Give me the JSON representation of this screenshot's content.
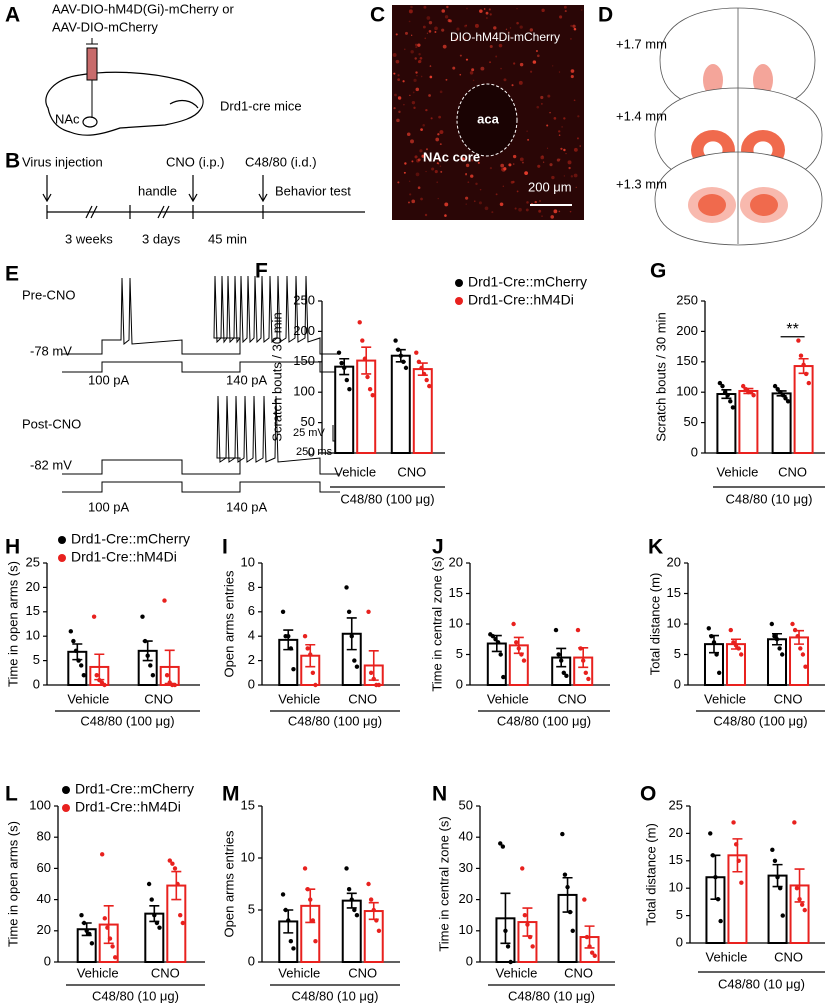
{
  "diagram": {
    "A": {
      "label": "A",
      "vector1": "AAV-DIO-hM4D(Gi)-mCherry or",
      "vector2": "AAV-DIO-mCherry",
      "region": "NAc",
      "mice": "Drd1-cre mice"
    },
    "B": {
      "label": "B",
      "step1": "Virus injection",
      "step2": "CNO (i.p.)",
      "step3": "C48/80 (i.d.)",
      "handle": "handle",
      "test": "Behavior test",
      "t1": "3 weeks",
      "t2": "3 days",
      "t3": "45 min"
    },
    "C": {
      "label": "C",
      "title": "DIO-hM4Di-mCherry",
      "aca": "aca",
      "core": "NAc core",
      "scale": "200 μm"
    },
    "D": {
      "label": "D",
      "s1": "+1.7 mm",
      "s2": "+1.4 mm",
      "s3": "+1.3 mm"
    },
    "E": {
      "label": "E",
      "pre": "Pre-CNO",
      "pre_v": "-78 mV",
      "pre_i1": "100 pA",
      "pre_i2": "140 pA",
      "post": "Post-CNO",
      "post_v": "-82 mV",
      "post_i1": "100 pA",
      "post_i2": "140 pA",
      "scale_v": "25 mV",
      "scale_t": "250 ms"
    }
  },
  "chart_data": [
    {
      "type": "bar",
      "panel": "F",
      "ylabel": "Scratch bouts / 30 min",
      "xlabel": "C48/80 (100 μg)",
      "categories": [
        "Vehicle",
        "CNO"
      ],
      "ylim": [
        0,
        250
      ],
      "yticks": [
        0,
        50,
        100,
        150,
        200,
        250
      ],
      "legend": "top",
      "series": [
        {
          "name": "Drd1-Cre::mCherry",
          "color": "#000000",
          "values": [
            142,
            160
          ],
          "errors": [
            13,
            10
          ],
          "points": [
            [
              165,
              148,
              140,
              120,
              105
            ],
            [
              185,
              170,
              160,
              150,
              140
            ]
          ]
        },
        {
          "name": "Drd1-Cre::hM4Di",
          "color": "#e8211e",
          "values": [
            152,
            138
          ],
          "errors": [
            22,
            10
          ],
          "points": [
            [
              215,
              185,
              155,
              125,
              105,
              95
            ],
            [
              165,
              150,
              140,
              130,
              120,
              110
            ]
          ]
        }
      ]
    },
    {
      "type": "bar",
      "panel": "G",
      "ylabel": "Scratch bouts / 30 min",
      "xlabel": "C48/80 (10 μg)",
      "categories": [
        "Vehicle",
        "CNO"
      ],
      "ylim": [
        0,
        250
      ],
      "yticks": [
        0,
        50,
        100,
        150,
        200,
        250
      ],
      "annotation": "**",
      "series": [
        {
          "color": "#000000",
          "values": [
            97,
            98
          ],
          "errors": [
            7,
            4
          ],
          "points": [
            [
              115,
              110,
              100,
              95,
              85,
              75
            ],
            [
              110,
              105,
              100,
              95,
              90,
              85
            ]
          ]
        },
        {
          "color": "#e8211e",
          "values": [
            102,
            143
          ],
          "errors": [
            4,
            12
          ],
          "points": [
            [
              110,
              105,
              100,
              100,
              95
            ],
            [
              185,
              160,
              145,
              130,
              115
            ]
          ]
        }
      ]
    },
    {
      "type": "bar",
      "panel": "H",
      "ylabel": "Time in open arms (s)",
      "xlabel": "C48/80 (100 μg)",
      "categories": [
        "Vehicle",
        "CNO"
      ],
      "ylim": [
        0,
        25
      ],
      "yticks": [
        0,
        5,
        10,
        15,
        20,
        25
      ],
      "legend": "top",
      "series": [
        {
          "name": "Drd1-Cre::mCherry",
          "color": "#000000",
          "values": [
            6.8,
            7.0
          ],
          "errors": [
            1.6,
            2.0
          ],
          "points": [
            [
              11,
              9,
              7,
              5,
              4,
              2
            ],
            [
              14,
              9,
              6,
              4,
              2
            ]
          ]
        },
        {
          "name": "Drd1-Cre::hM4Di",
          "color": "#e8211e",
          "values": [
            3.7,
            3.7
          ],
          "errors": [
            2.6,
            3.4
          ],
          "points": [
            [
              14,
              2,
              1,
              0.5,
              0
            ],
            [
              17.3,
              2,
              0.5,
              0,
              0
            ]
          ]
        }
      ]
    },
    {
      "type": "bar",
      "panel": "I",
      "ylabel": "Open arms entries",
      "xlabel": "C48/80 (100 μg)",
      "categories": [
        "Vehicle",
        "CNO"
      ],
      "ylim": [
        0,
        10
      ],
      "yticks": [
        0,
        2,
        4,
        6,
        8,
        10
      ],
      "series": [
        {
          "color": "#000000",
          "values": [
            3.7,
            4.2
          ],
          "errors": [
            0.8,
            1.3
          ],
          "points": [
            [
              6,
              4,
              4,
              3,
              1.3
            ],
            [
              8,
              6,
              4,
              2,
              1.5
            ]
          ]
        },
        {
          "color": "#e8211e",
          "values": [
            2.4,
            1.6
          ],
          "errors": [
            0.9,
            1.2
          ],
          "points": [
            [
              4,
              3,
              2.5,
              1,
              0
            ],
            [
              6,
              1,
              0.5,
              0,
              0
            ]
          ]
        }
      ]
    },
    {
      "type": "bar",
      "panel": "J",
      "ylabel": "Time in central zone (s)",
      "xlabel": "C48/80 (100 μg)",
      "categories": [
        "Vehicle",
        "CNO"
      ],
      "ylim": [
        0,
        20
      ],
      "yticks": [
        0,
        5,
        10,
        15,
        20
      ],
      "series": [
        {
          "color": "#000000",
          "values": [
            6.8,
            4.5
          ],
          "errors": [
            1.3,
            1.5
          ],
          "points": [
            [
              8.3,
              8,
              7.5,
              7,
              5,
              1.3
            ],
            [
              9,
              5,
              4,
              2,
              1.5
            ]
          ]
        },
        {
          "color": "#e8211e",
          "values": [
            6.5,
            4.5
          ],
          "errors": [
            1.3,
            1.6
          ],
          "points": [
            [
              10,
              7,
              6,
              5,
              4
            ],
            [
              9,
              6,
              4,
              2,
              1
            ]
          ]
        }
      ]
    },
    {
      "type": "bar",
      "panel": "K",
      "ylabel": "Total distance (m)",
      "xlabel": "C48/80 (100 μg)",
      "categories": [
        "Vehicle",
        "CNO"
      ],
      "ylim": [
        0,
        20
      ],
      "yticks": [
        0,
        5,
        10,
        15,
        20
      ],
      "series": [
        {
          "color": "#000000",
          "values": [
            6.7,
            7.5
          ],
          "errors": [
            1.4,
            0.9
          ],
          "points": [
            [
              9.3,
              8,
              7,
              5,
              2
            ],
            [
              10,
              8,
              7.5,
              6,
              5
            ]
          ]
        },
        {
          "color": "#e8211e",
          "values": [
            6.7,
            7.8
          ],
          "errors": [
            0.8,
            1.1
          ],
          "points": [
            [
              9,
              7,
              6.5,
              6,
              5
            ],
            [
              10,
              9,
              8,
              6,
              5,
              3
            ]
          ]
        }
      ]
    },
    {
      "type": "bar",
      "panel": "L",
      "ylabel": "Time in open arms (s)",
      "xlabel": "C48/80 (10 μg)",
      "categories": [
        "Vehicle",
        "CNO"
      ],
      "ylim": [
        0,
        100
      ],
      "yticks": [
        0,
        20,
        40,
        60,
        80,
        100
      ],
      "legend": "top",
      "series": [
        {
          "name": "Drd1-Cre::mCherry",
          "color": "#000000",
          "values": [
            21,
            31
          ],
          "errors": [
            4,
            5
          ],
          "points": [
            [
              30,
              25,
              20,
              18,
              12
            ],
            [
              50,
              40,
              30,
              25,
              22
            ]
          ]
        },
        {
          "name": "Drd1-Cre::hM4Di",
          "color": "#e8211e",
          "values": [
            24,
            49
          ],
          "errors": [
            12,
            9
          ],
          "points": [
            [
              69,
              28,
              22,
              15,
              10,
              3
            ],
            [
              65,
              63,
              60,
              50,
              30,
              25
            ]
          ]
        }
      ]
    },
    {
      "type": "bar",
      "panel": "M",
      "ylabel": "Open arms entries",
      "xlabel": "C48/80 (10 μg)",
      "categories": [
        "Vehicle",
        "CNO"
      ],
      "ylim": [
        0,
        15
      ],
      "yticks": [
        0,
        5,
        10,
        15
      ],
      "series": [
        {
          "color": "#000000",
          "values": [
            3.9,
            5.9
          ],
          "errors": [
            1.1,
            0.7
          ],
          "points": [
            [
              6.5,
              5,
              4,
              2,
              1.3
            ],
            [
              9,
              7,
              6,
              5,
              4.5
            ]
          ]
        },
        {
          "color": "#e8211e",
          "values": [
            5.4,
            4.9
          ],
          "errors": [
            1.6,
            0.8
          ],
          "points": [
            [
              9,
              7,
              6,
              4,
              2
            ],
            [
              7.5,
              6,
              5,
              4,
              3
            ]
          ]
        }
      ]
    },
    {
      "type": "bar",
      "panel": "N",
      "ylabel": "Time in central zone (s)",
      "xlabel": "C48/80 (10 μg)",
      "categories": [
        "Vehicle",
        "CNO"
      ],
      "ylim": [
        0,
        50
      ],
      "yticks": [
        0,
        10,
        20,
        30,
        40,
        50
      ],
      "series": [
        {
          "color": "#000000",
          "values": [
            14,
            21.5
          ],
          "errors": [
            8,
            5.5
          ],
          "points": [
            [
              38,
              37,
              10,
              5,
              0
            ],
            [
              41,
              28,
              24,
              16,
              10
            ]
          ]
        },
        {
          "color": "#e8211e",
          "values": [
            12.8,
            8
          ],
          "errors": [
            4.5,
            3.5
          ],
          "points": [
            [
              30,
              15,
              12,
              8,
              5
            ],
            [
              20,
              8,
              5,
              3,
              2
            ]
          ]
        }
      ]
    },
    {
      "type": "bar",
      "panel": "O",
      "ylabel": "Total distance (m)",
      "xlabel": "C48/80 (10 μg)",
      "categories": [
        "Vehicle",
        "CNO"
      ],
      "ylim": [
        0,
        25
      ],
      "yticks": [
        0,
        5,
        10,
        15,
        20,
        25
      ],
      "series": [
        {
          "color": "#000000",
          "values": [
            12,
            12.3
          ],
          "errors": [
            4,
            2
          ],
          "points": [
            [
              20,
              16,
              12,
              8,
              4
            ],
            [
              17,
              15,
              12,
              10,
              5
            ]
          ]
        },
        {
          "color": "#e8211e",
          "values": [
            16,
            10.5
          ],
          "errors": [
            3,
            3
          ],
          "points": [
            [
              22,
              18,
              15,
              11
            ],
            [
              22,
              10,
              8,
              7,
              6
            ]
          ]
        }
      ]
    }
  ]
}
